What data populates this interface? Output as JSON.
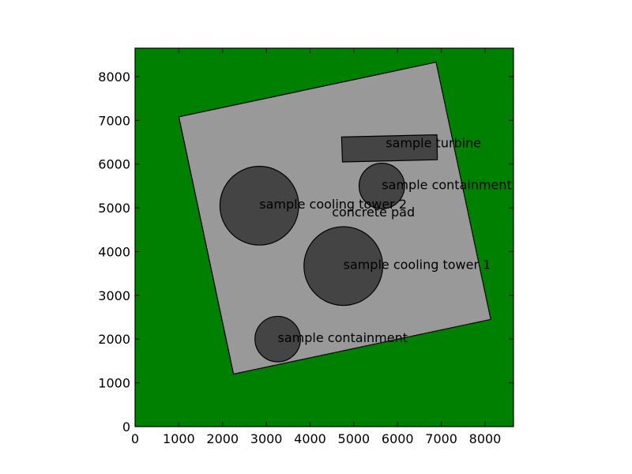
{
  "chart_data": {
    "type": "site-layout",
    "title": "",
    "xlabel": "",
    "ylabel": "",
    "xlim": [
      0,
      8650
    ],
    "ylim": [
      0,
      8650
    ],
    "xticks": [
      0,
      1000,
      2000,
      3000,
      4000,
      5000,
      6000,
      7000,
      8000
    ],
    "yticks": [
      0,
      1000,
      2000,
      3000,
      4000,
      5000,
      6000,
      7000,
      8000
    ],
    "grid": false,
    "background_color": "#008000",
    "pad_color": "#999999",
    "structure_color": "#444444",
    "polygons": [
      {
        "label": "concrete pad",
        "points": [
          [
            1000,
            7080
          ],
          [
            6880,
            8330
          ],
          [
            8130,
            2450
          ],
          [
            2250,
            1200
          ]
        ],
        "label_at": [
          4500,
          4800
        ]
      },
      {
        "label": "sample turbine",
        "points": [
          [
            4720,
            6620
          ],
          [
            6900,
            6670
          ],
          [
            6910,
            6100
          ],
          [
            4740,
            6050
          ]
        ],
        "label_at": [
          5730,
          6380
        ]
      }
    ],
    "circles": [
      {
        "label": "sample containment",
        "center": [
          5640,
          5500
        ],
        "radius": 520
      },
      {
        "label": "sample cooling tower 2",
        "center": [
          2840,
          5050
        ],
        "radius": 900
      },
      {
        "label": "sample cooling tower 1",
        "center": [
          4760,
          3670
        ],
        "radius": 900
      },
      {
        "label": "sample containment",
        "center": [
          3260,
          2000
        ],
        "radius": 520
      }
    ]
  }
}
